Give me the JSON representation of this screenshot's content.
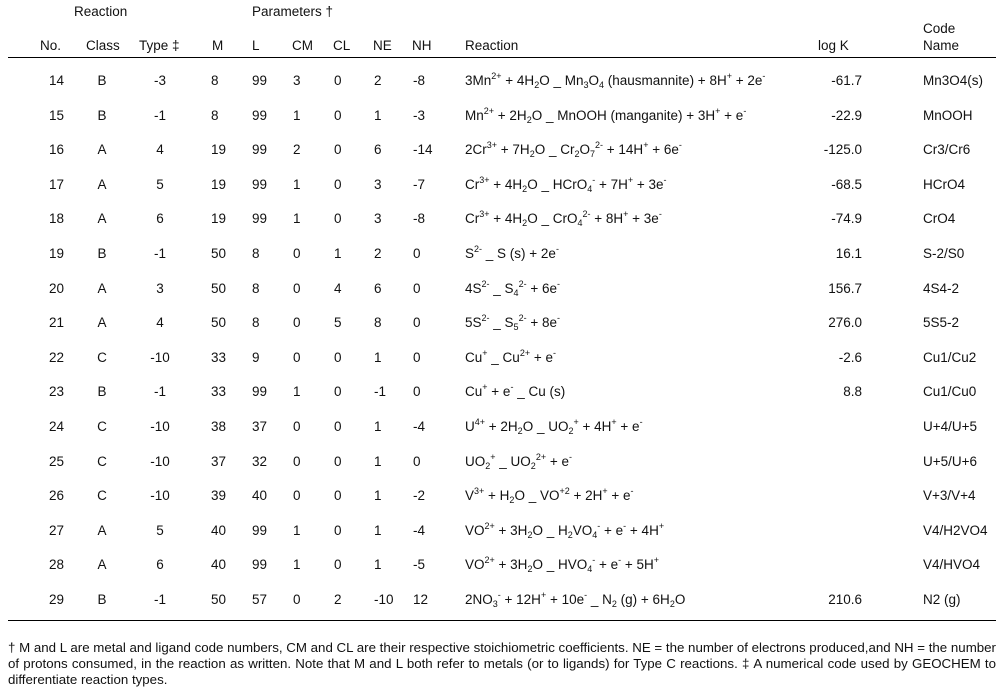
{
  "header": {
    "group_reaction": "Reaction",
    "group_parameters": "Parameters †",
    "no": "No.",
    "class": "Class",
    "type": "Type ‡",
    "m": "M",
    "l": "L",
    "cm": "CM",
    "cl": "CL",
    "ne": "NE",
    "nh": "NH",
    "reaction": "Reaction",
    "logk": "log K",
    "code1": "Code",
    "code2": "Name"
  },
  "rows": [
    {
      "no": "14",
      "cls": "B",
      "type": "-3",
      "m": "8",
      "l": "99",
      "cm": "3",
      "cl": "0",
      "ne": "2",
      "nh": "-8",
      "rxn": "3Mn<sup>2+</sup> + 4H<sub>2</sub>O _ Mn<sub>3</sub>O<sub>4</sub> (hausmannite) + 8H<sup>+</sup> + 2e<sup>-</sup>",
      "logk": "-61.7",
      "code": "Mn3O4(s)"
    },
    {
      "no": "15",
      "cls": "B",
      "type": "-1",
      "m": "8",
      "l": "99",
      "cm": "1",
      "cl": "0",
      "ne": "1",
      "nh": "-3",
      "rxn": "Mn<sup>2+</sup> + 2H<sub>2</sub>O _ MnOOH (manganite) + 3H<sup>+</sup> + e<sup>-</sup>",
      "logk": "-22.9",
      "code": "MnOOH"
    },
    {
      "no": "16",
      "cls": "A",
      "type": "4",
      "m": "19",
      "l": "99",
      "cm": "2",
      "cl": "0",
      "ne": "6",
      "nh": "-14",
      "rxn": "2Cr<sup>3+</sup> + 7H<sub>2</sub>O _ Cr<sub>2</sub>O<sub>7</sub><sup>2-</sup> + 14H<sup>+</sup> + 6e<sup>-</sup>",
      "logk": "-125.0",
      "code": "Cr3/Cr6"
    },
    {
      "no": "17",
      "cls": "A",
      "type": "5",
      "m": "19",
      "l": "99",
      "cm": "1",
      "cl": "0",
      "ne": "3",
      "nh": "-7",
      "rxn": "Cr<sup>3+</sup> + 4H<sub>2</sub>O _ HCrO<sub>4</sub><sup>-</sup> + 7H<sup>+</sup> + 3e<sup>-</sup>",
      "logk": "-68.5",
      "code": "HCrO4"
    },
    {
      "no": "18",
      "cls": "A",
      "type": "6",
      "m": "19",
      "l": "99",
      "cm": "1",
      "cl": "0",
      "ne": "3",
      "nh": "-8",
      "rxn": "Cr<sup>3+</sup> + 4H<sub>2</sub>O _ CrO<sub>4</sub><sup>2-</sup> + 8H<sup>+</sup> + 3e<sup>-</sup>",
      "logk": "-74.9",
      "code": "CrO4"
    },
    {
      "no": "19",
      "cls": "B",
      "type": "-1",
      "m": "50",
      "l": "8",
      "cm": "0",
      "cl": "1",
      "ne": "2",
      "nh": "0",
      "rxn": "S<sup>2-</sup> _ S (s) + 2e<sup>-</sup>",
      "logk": "16.1",
      "code": "S-2/S0"
    },
    {
      "no": "20",
      "cls": "A",
      "type": "3",
      "m": "50",
      "l": "8",
      "cm": "0",
      "cl": "4",
      "ne": "6",
      "nh": "0",
      "rxn": "4S<sup>2-</sup> _ S<sub>4</sub><sup>2-</sup> + 6e<sup>-</sup>",
      "logk": "156.7",
      "code": "4S4-2"
    },
    {
      "no": "21",
      "cls": "A",
      "type": "4",
      "m": "50",
      "l": "8",
      "cm": "0",
      "cl": "5",
      "ne": "8",
      "nh": "0",
      "rxn": "5S<sup>2-</sup> _ S<sub>5</sub><sup>2-</sup> + 8e<sup>-</sup>",
      "logk": "276.0",
      "code": "5S5-2"
    },
    {
      "no": "22",
      "cls": "C",
      "type": "-10",
      "m": "33",
      "l": "9",
      "cm": "0",
      "cl": "0",
      "ne": "1",
      "nh": "0",
      "rxn": "Cu<sup>+</sup> _ Cu<sup>2+</sup> + e<sup>-</sup>",
      "logk": "-2.6",
      "code": "Cu1/Cu2"
    },
    {
      "no": "23",
      "cls": "B",
      "type": "-1",
      "m": "33",
      "l": "99",
      "cm": "1",
      "cl": "0",
      "ne": "-1",
      "nh": "0",
      "rxn": "Cu<sup>+</sup> + e<sup>-</sup> _ Cu (s)",
      "logk": "8.8",
      "code": "Cu1/Cu0"
    },
    {
      "no": "24",
      "cls": "C",
      "type": "-10",
      "m": "38",
      "l": "37",
      "cm": "0",
      "cl": "0",
      "ne": "1",
      "nh": "-4",
      "rxn": "U<sup>4+</sup> + 2H<sub>2</sub>O _ UO<sub>2</sub><sup>+</sup> + 4H<sup>+</sup> + e<sup>-</sup>",
      "logk": "",
      "code": "U+4/U+5"
    },
    {
      "no": "25",
      "cls": "C",
      "type": "-10",
      "m": "37",
      "l": "32",
      "cm": "0",
      "cl": "0",
      "ne": "1",
      "nh": "0",
      "rxn": "UO<sub>2</sub><sup>+</sup> _ UO<sub>2</sub><sup>2+</sup> + e<sup>-</sup>",
      "logk": "",
      "code": "U+5/U+6"
    },
    {
      "no": "26",
      "cls": "C",
      "type": "-10",
      "m": "39",
      "l": "40",
      "cm": "0",
      "cl": "0",
      "ne": "1",
      "nh": "-2",
      "rxn": "V<sup>3+</sup> + H<sub>2</sub>O _ VO<sup>+2</sup> + 2H<sup>+</sup> + e<sup>-</sup>",
      "logk": "",
      "code": "V+3/V+4"
    },
    {
      "no": "27",
      "cls": "A",
      "type": "5",
      "m": "40",
      "l": "99",
      "cm": "1",
      "cl": "0",
      "ne": "1",
      "nh": "-4",
      "rxn": "VO<sup>2+</sup> + 3H<sub>2</sub>O _ H<sub>2</sub>VO<sub>4</sub><sup>-</sup> + e<sup>-</sup> + 4H<sup>+</sup>",
      "logk": "",
      "code": "V4/H2VO4"
    },
    {
      "no": "28",
      "cls": "A",
      "type": "6",
      "m": "40",
      "l": "99",
      "cm": "1",
      "cl": "0",
      "ne": "1",
      "nh": "-5",
      "rxn": "VO<sup>2+</sup> + 3H<sub>2</sub>O _ HVO<sub>4</sub><sup>-</sup> + e<sup>-</sup> + 5H<sup>+</sup>",
      "logk": "",
      "code": "V4/HVO4"
    },
    {
      "no": "29",
      "cls": "B",
      "type": "-1",
      "m": "50",
      "l": "57",
      "cm": "0",
      "cl": "2",
      "ne": "-10",
      "nh": "12",
      "rxn": "2NO<sub>3</sub><sup>-</sup> + 12H<sup>+</sup> + 10e<sup>-</sup> _ N<sub>2</sub> (g) + 6H<sub>2</sub>O",
      "logk": "210.6",
      "code": "N2 (g)"
    }
  ],
  "footnote": "† M and L are metal and ligand code numbers, CM and CL are their respective stoichiometric coefficients.  NE = the number   of electrons produced,and NH = the number of protons consumed, in the reaction as written.  Note that M and L both refer to metals (or to ligands) for Type C reactions. ‡ A numerical code used by GEOCHEM to differentiate reaction types."
}
